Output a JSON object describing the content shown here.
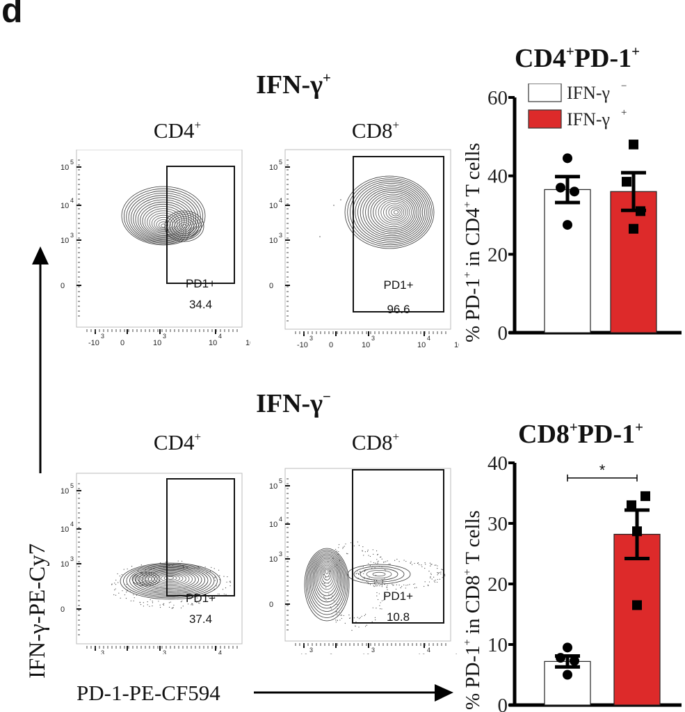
{
  "panel_letter": "d",
  "axis_labels": {
    "y": "IFN-γ-PE-Cy7",
    "x": "PD-1-PE-CF594"
  },
  "groups": [
    {
      "title": "IFN-γ",
      "title_sup": "+",
      "plots": [
        {
          "cell": "CD4",
          "cell_sup": "+",
          "gate_name": "PD1+",
          "gate_value": "34.4",
          "population": "cd4-pos"
        },
        {
          "cell": "CD8",
          "cell_sup": "+",
          "gate_name": "PD1+",
          "gate_value": "96.6",
          "population": "cd8-pos"
        }
      ]
    },
    {
      "title": "IFN-γ",
      "title_sup": "−",
      "plots": [
        {
          "cell": "CD4",
          "cell_sup": "+",
          "gate_name": "PD1+",
          "gate_value": "37.4",
          "population": "cd4-neg"
        },
        {
          "cell": "CD8",
          "cell_sup": "+",
          "gate_name": "PD1+",
          "gate_value": "10.8",
          "population": "cd8-neg"
        }
      ]
    }
  ],
  "flow_axis_ticks": {
    "x": [
      {
        "base": "-10",
        "exp": "3"
      },
      {
        "base": "0",
        "exp": ""
      },
      {
        "base": "10",
        "exp": "3"
      },
      {
        "base": "10",
        "exp": "4"
      },
      {
        "base": "10",
        "exp": "5"
      }
    ],
    "y": [
      {
        "base": "10",
        "exp": "5"
      },
      {
        "base": "10",
        "exp": "4"
      },
      {
        "base": "10",
        "exp": "3"
      },
      {
        "base": "0",
        "exp": ""
      }
    ]
  },
  "colors": {
    "ifn_neg_fill": "#ffffff",
    "ifn_pos_fill": "#dd2a2a",
    "ink": "#111111"
  },
  "chart_data": [
    {
      "type": "bar",
      "title": "CD4",
      "title_sup1": "+",
      "title_mid": "PD-1",
      "title_sup2": "+",
      "ylabel": "% PD-1+ in CD4+ T cells",
      "ylabel_parts": [
        "% PD-1",
        "+",
        " in CD4",
        "+",
        " T cells"
      ],
      "ylim": [
        0,
        60
      ],
      "yticks": [
        0,
        20,
        40,
        60
      ],
      "categories": [
        "IFN-γ−",
        "IFN-γ+"
      ],
      "legend": [
        {
          "label": "IFN-γ",
          "sup": "−",
          "color": "#ffffff"
        },
        {
          "label": "IFN-γ",
          "sup": "+",
          "color": "#dd2a2a"
        }
      ],
      "legend_position": "top-left",
      "series": [
        {
          "name": "IFN-γ−",
          "mean": 36.5,
          "sem": 3.3,
          "points": [
            44.5,
            37.0,
            36.0,
            27.5
          ],
          "marker": "circle",
          "color": "#ffffff"
        },
        {
          "name": "IFN-γ+",
          "mean": 36.0,
          "sem": 4.8,
          "points": [
            48.0,
            38.5,
            31.0,
            26.5
          ],
          "marker": "square",
          "color": "#dd2a2a"
        }
      ],
      "significance": null
    },
    {
      "type": "bar",
      "title": "CD8",
      "title_sup1": "+",
      "title_mid": "PD-1",
      "title_sup2": "+",
      "ylabel": "% PD-1+ in CD8+ T cells",
      "ylabel_parts": [
        "% PD-1",
        "+",
        " in CD8",
        "+",
        " T cells"
      ],
      "ylim": [
        0,
        40
      ],
      "yticks": [
        0,
        10,
        20,
        30,
        40
      ],
      "categories": [
        "IFN-γ−",
        "IFN-γ+"
      ],
      "series": [
        {
          "name": "IFN-γ−",
          "mean": 7.2,
          "sem": 0.9,
          "points": [
            9.5,
            7.8,
            7.3,
            5.0
          ],
          "marker": "circle",
          "color": "#ffffff"
        },
        {
          "name": "IFN-γ+",
          "mean": 28.2,
          "sem": 4.0,
          "points": [
            33.0,
            34.5,
            28.7,
            16.5
          ],
          "marker": "square",
          "color": "#dd2a2a"
        }
      ],
      "significance": {
        "label": "*",
        "between": [
          "IFN-γ−",
          "IFN-γ+"
        ]
      }
    }
  ]
}
